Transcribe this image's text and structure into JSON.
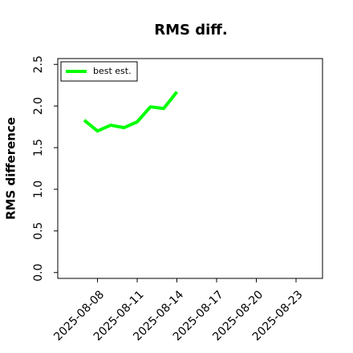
{
  "chart_data": {
    "type": "line",
    "title": "RMS diff.",
    "y_label": "RMS difference",
    "x": [
      "2025-08-07",
      "2025-08-08",
      "2025-08-09",
      "2025-08-10",
      "2025-08-11",
      "2025-08-12",
      "2025-08-13",
      "2025-08-14"
    ],
    "series": [
      {
        "name": "best est.",
        "color": "#00ff00",
        "values": [
          1.83,
          1.7,
          1.77,
          1.74,
          1.81,
          1.99,
          1.97,
          2.17
        ]
      }
    ],
    "xlim": [
      "2025-08-05",
      "2025-08-25"
    ],
    "xticks": [
      "2025-08-08",
      "2025-08-11",
      "2025-08-14",
      "2025-08-17",
      "2025-08-20",
      "2025-08-23"
    ],
    "ylim": [
      -0.07,
      2.57
    ],
    "yticks": [
      {
        "value": 0,
        "label": "0.0"
      },
      {
        "value": 0.5,
        "label": "0.5"
      },
      {
        "value": 1,
        "label": "1.0"
      },
      {
        "value": 1.5,
        "label": "1.5"
      },
      {
        "value": 2,
        "label": "2.0"
      },
      {
        "value": 2.5,
        "label": "2.5"
      }
    ],
    "legend": "upper left"
  }
}
